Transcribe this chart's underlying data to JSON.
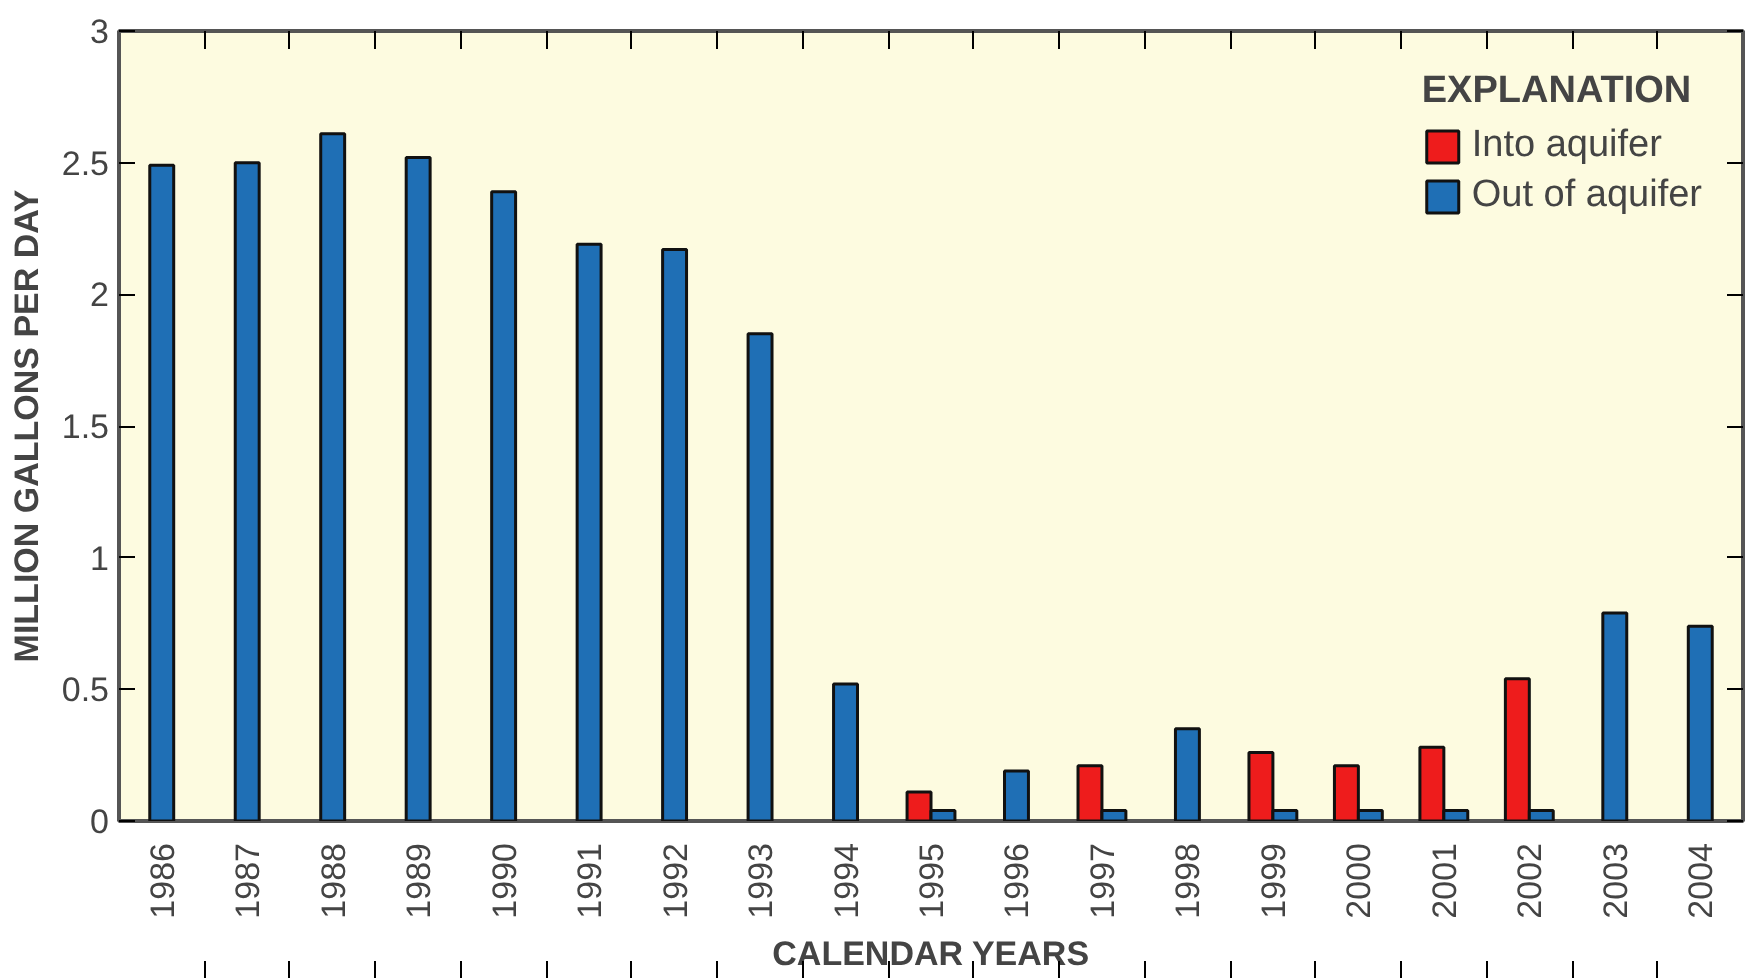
{
  "chart_data": {
    "type": "bar",
    "xlabel": "CALENDAR YEARS",
    "ylabel": "MILLION GALLONS PER DAY",
    "legend_title": "EXPLANATION",
    "categories": [
      "1986",
      "1987",
      "1988",
      "1989",
      "1990",
      "1991",
      "1992",
      "1993",
      "1994",
      "1995",
      "1996",
      "1997",
      "1998",
      "1999",
      "2000",
      "2001",
      "2002",
      "2003",
      "2004"
    ],
    "series": [
      {
        "name": "Into aquifer",
        "color": "#ee1c1c",
        "values": [
          null,
          null,
          null,
          null,
          null,
          null,
          null,
          null,
          null,
          0.11,
          null,
          0.21,
          null,
          0.26,
          0.21,
          0.28,
          0.54,
          null,
          null
        ]
      },
      {
        "name": "Out of aquifer",
        "color": "#1f6fb5",
        "values": [
          2.49,
          2.5,
          2.61,
          2.52,
          2.39,
          2.19,
          2.17,
          1.85,
          0.52,
          0.04,
          0.19,
          0.04,
          0.35,
          0.04,
          0.04,
          0.04,
          0.04,
          0.79,
          0.74
        ]
      }
    ],
    "ylim": [
      0,
      3
    ],
    "yticks": [
      0,
      0.5,
      1,
      1.5,
      2,
      2.5,
      3
    ],
    "grid": false,
    "legend": "top right"
  }
}
